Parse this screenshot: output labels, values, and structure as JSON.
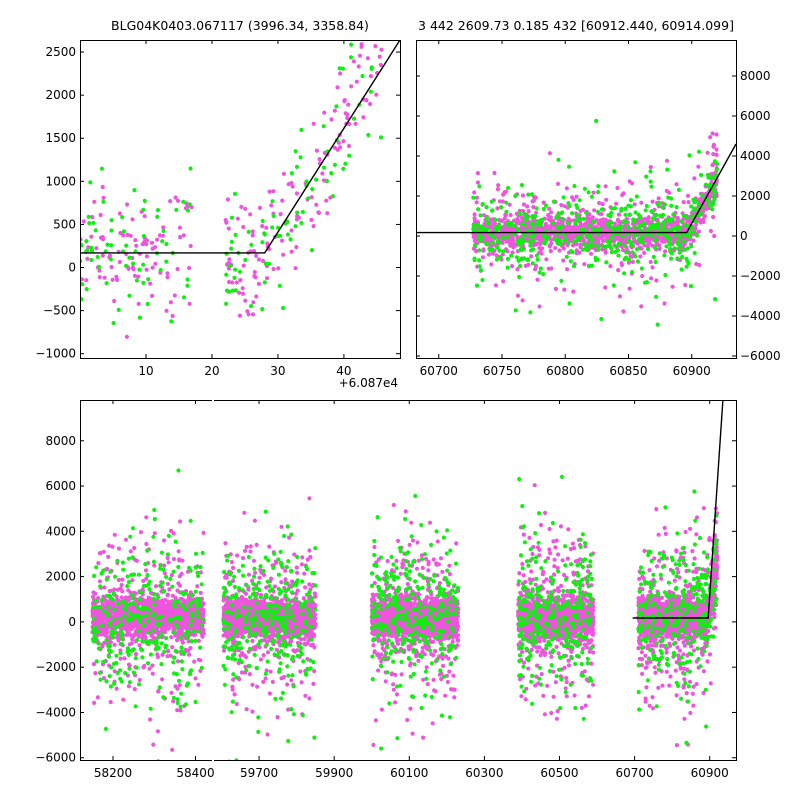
{
  "colors": {
    "magenta": "#ee55dd",
    "green": "#11ee11",
    "model": "#000000"
  },
  "chart_data": [
    {
      "id": "phase",
      "type": "scatter",
      "title": "BLG04K0403.067117 (3996.34, 3358.84)",
      "xlim": [
        0,
        48.5
      ],
      "ylim": [
        -1050,
        2640
      ],
      "xticks": [
        10,
        20,
        30,
        40
      ],
      "xtick_labels": [
        "10",
        "20",
        "30",
        "40"
      ],
      "yticks": [
        -1000,
        -500,
        0,
        500,
        1000,
        1500,
        2000,
        2500
      ],
      "ytick_labels": [
        "−1000",
        "−500",
        "0",
        "500",
        "1000",
        "1500",
        "2000",
        "2500"
      ],
      "y_axis_side": "left",
      "offset_label": "+6.087e4",
      "model": {
        "x": [
          0,
          28,
          48.5
        ],
        "y": [
          170,
          170,
          2640
        ]
      },
      "scatter_spec": {
        "magenta_points": 230,
        "green_points": 150,
        "x_groups": [
          [
            0,
            17
          ],
          [
            22,
            46
          ]
        ]
      }
    },
    {
      "id": "zoom",
      "type": "scatter",
      "title": "3 442 2609.73 0.185 432 [60912.440, 60914.099]",
      "xlim": [
        60682,
        60935
      ],
      "ylim": [
        -6100,
        9800
      ],
      "xticks": [
        60700,
        60750,
        60800,
        60850,
        60900
      ],
      "xtick_labels": [
        "60700",
        "60750",
        "60800",
        "60850",
        "60900"
      ],
      "yticks": [
        -6000,
        -4000,
        -2000,
        0,
        2000,
        4000,
        6000,
        8000
      ],
      "ytick_labels": [
        "−6000",
        "−4000",
        "−2000",
        "0",
        "2000",
        "4000",
        "6000",
        "8000"
      ],
      "y_axis_side": "right",
      "model": {
        "x": [
          60682,
          60896,
          60935
        ],
        "y": [
          170,
          170,
          4600
        ]
      },
      "scatter_spec": {
        "magenta_points": 1600,
        "green_points": 500,
        "x_range": [
          60727,
          60920
        ]
      }
    },
    {
      "id": "full",
      "type": "scatter",
      "title": "",
      "xlim": [
        58120,
        60970
      ],
      "x_break": {
        "at": 58440,
        "resume": 59580
      },
      "ylim": [
        -6100,
        9800
      ],
      "xticks": [
        58200,
        58400,
        59700,
        59900,
        60100,
        60300,
        60500,
        60700,
        60900
      ],
      "xtick_labels": [
        "58200",
        "58400",
        "59700",
        "59900",
        "60100",
        "60300",
        "60500",
        "60700",
        "60900"
      ],
      "yticks": [
        -6000,
        -4000,
        -2000,
        0,
        2000,
        4000,
        6000,
        8000
      ],
      "ytick_labels": [
        "−6000",
        "−4000",
        "−2000",
        "0",
        "2000",
        "4000",
        "6000",
        "8000"
      ],
      "y_axis_side": "left",
      "model": {
        "x": [
          60695,
          60896,
          60935
        ],
        "y": [
          170,
          170,
          9800
        ]
      },
      "scatter_spec": {
        "seasons": [
          [
            58150,
            58420
          ],
          [
            59605,
            59850
          ],
          [
            60000,
            60230
          ],
          [
            60390,
            60590
          ],
          [
            60710,
            60920
          ]
        ],
        "magenta_points_per_season": 1700,
        "green_points_per_season": 300
      }
    }
  ]
}
